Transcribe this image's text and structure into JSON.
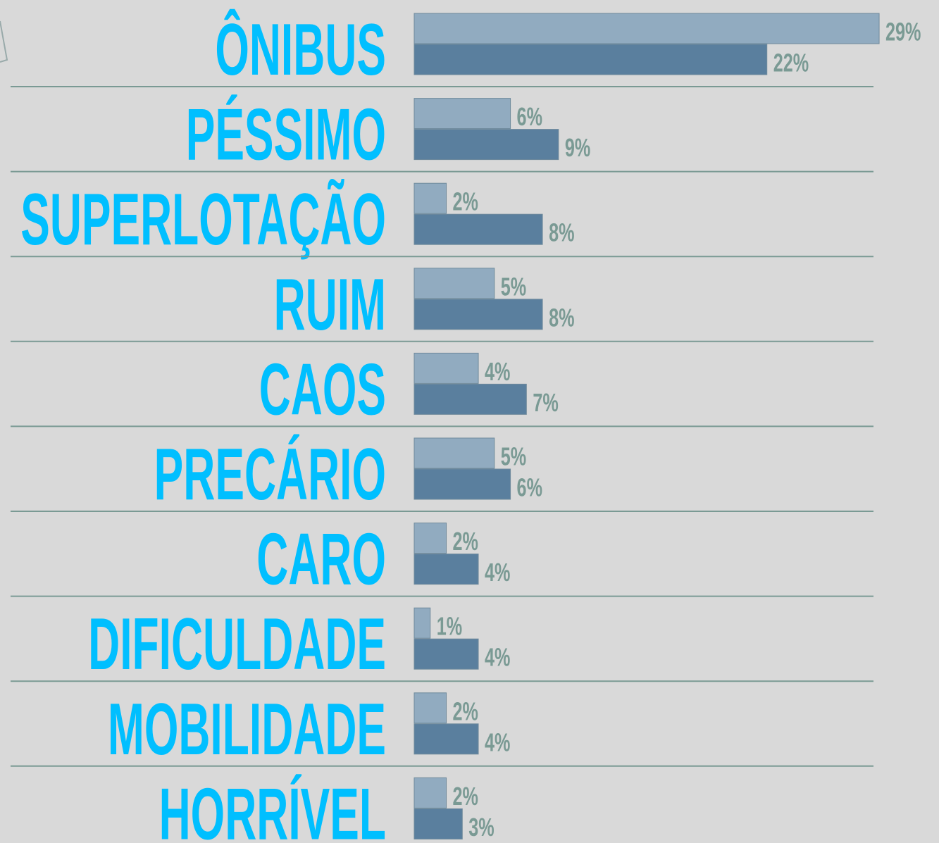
{
  "chart_data": {
    "type": "bar",
    "orientation": "horizontal",
    "categories": [
      "ÔNIBUS",
      "PÉSSIMO",
      "SUPERLOTAÇÃO",
      "RUIM",
      "CAOS",
      "PRECÁRIO",
      "CARO",
      "DIFICULDADE",
      "MOBILIDADE",
      "HORRÍVEL"
    ],
    "series": [
      {
        "color": "#91abc0",
        "values": [
          29,
          6,
          2,
          5,
          4,
          5,
          2,
          1,
          2,
          2
        ],
        "value_labels": [
          "29%",
          "6%",
          "2%",
          "5%",
          "4%",
          "5%",
          "2%",
          "1%",
          "2%",
          "2%"
        ]
      },
      {
        "color": "#5a7f9e",
        "values": [
          22,
          9,
          8,
          8,
          7,
          6,
          4,
          4,
          4,
          3
        ],
        "value_labels": [
          "22%",
          "9%",
          "8%",
          "8%",
          "7%",
          "6%",
          "4%",
          "4%",
          "4%",
          "3%"
        ]
      }
    ]
  }
}
